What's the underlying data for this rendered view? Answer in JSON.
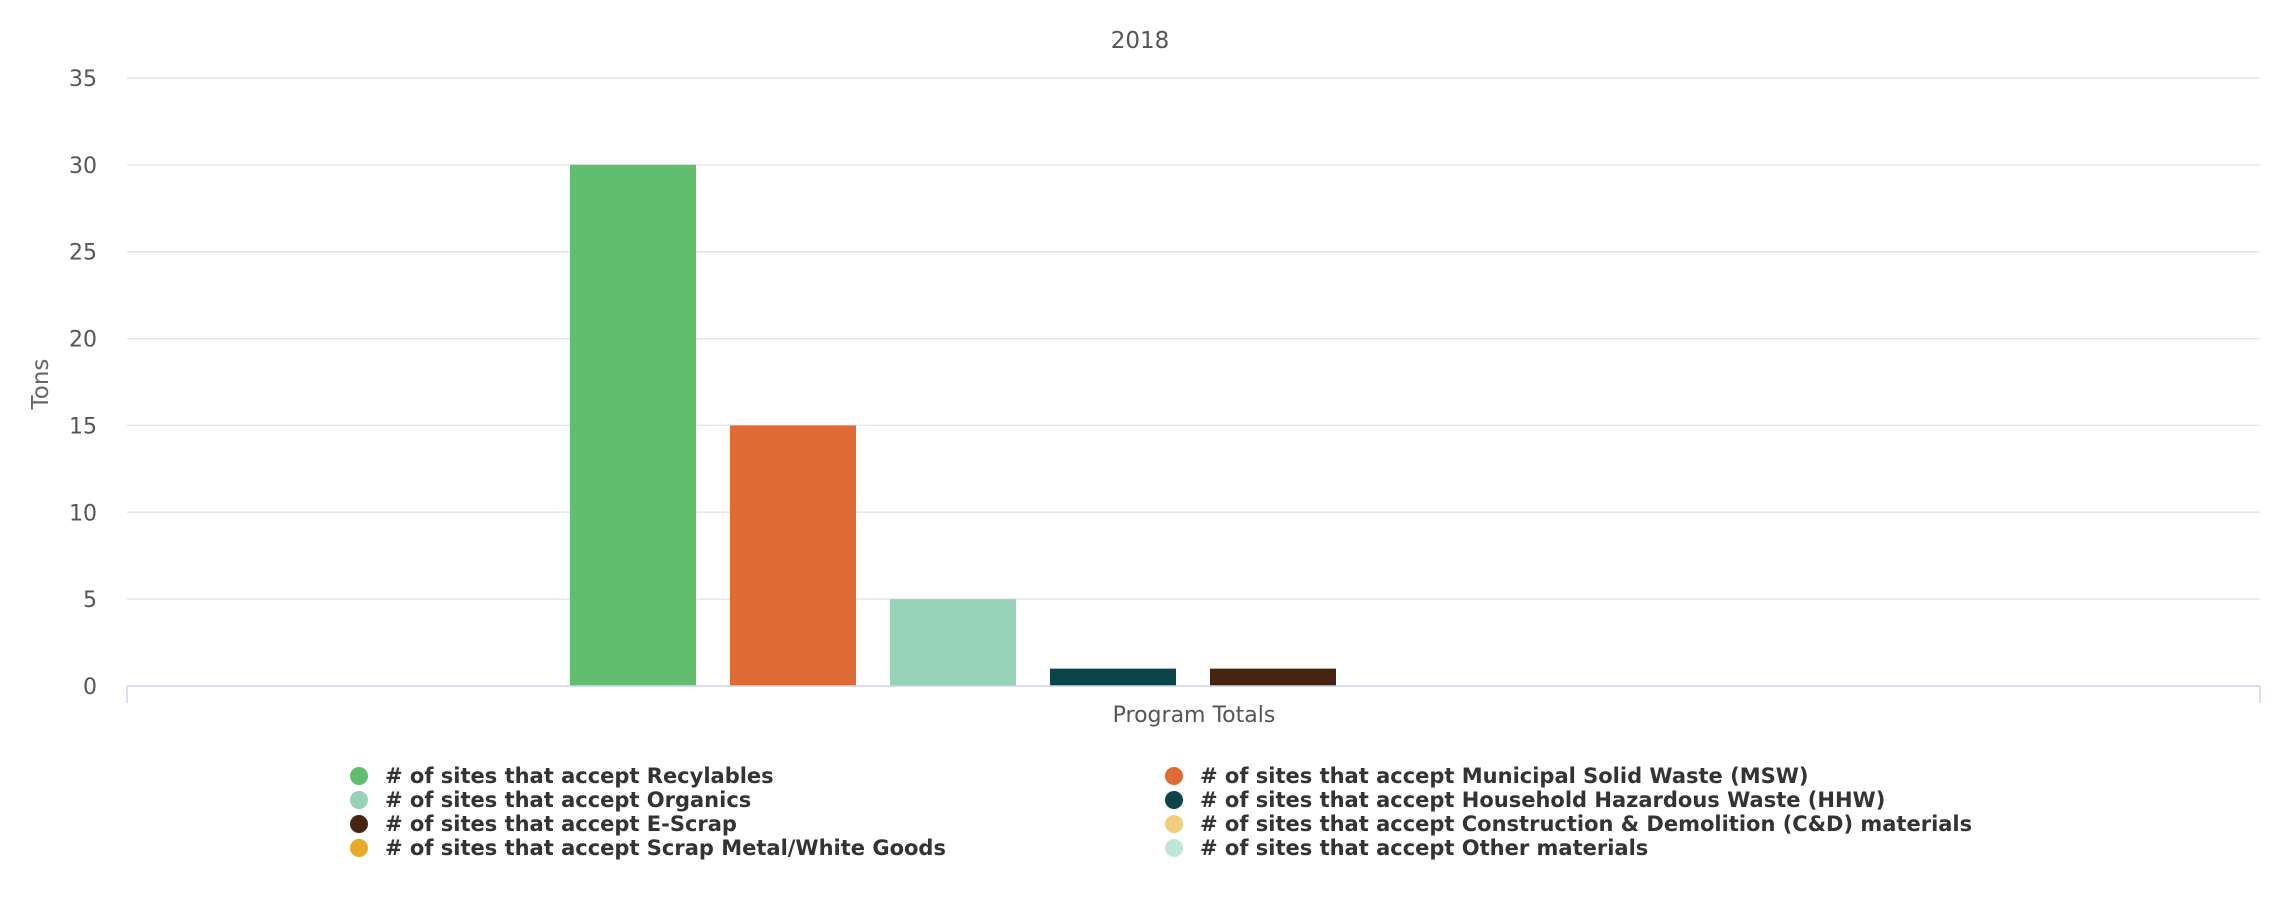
{
  "chart_data": {
    "type": "bar",
    "title": "2018",
    "ylabel": "Tons",
    "categories": [
      "Program Totals"
    ],
    "ylim": [
      0,
      35
    ],
    "yticks": [
      0,
      5,
      10,
      15,
      20,
      25,
      30,
      35
    ],
    "grid": true,
    "legend_position": "bottom",
    "series": [
      {
        "name": "# of sites that accept Recylables",
        "values": [
          30
        ],
        "color": "#62be6f"
      },
      {
        "name": "# of sites that accept Municipal Solid Waste (MSW)",
        "values": [
          15
        ],
        "color": "#e06a33"
      },
      {
        "name": "# of sites that accept Organics",
        "values": [
          5
        ],
        "color": "#96d2b8"
      },
      {
        "name": "# of sites that accept Household Hazardous Waste (HHW)",
        "values": [
          1
        ],
        "color": "#0b4449"
      },
      {
        "name": "# of sites that accept E-Scrap",
        "values": [
          1
        ],
        "color": "#452512"
      },
      {
        "name": "# of sites that accept Construction & Demolition (C&D) materials",
        "values": [
          0
        ],
        "color": "#f2cc7b"
      },
      {
        "name": "# of sites that accept Scrap Metal/White Goods",
        "values": [
          0
        ],
        "color": "#e8a828"
      },
      {
        "name": "# of sites that accept Other materials",
        "values": [
          0
        ],
        "color": "#c0e6d8"
      }
    ]
  }
}
